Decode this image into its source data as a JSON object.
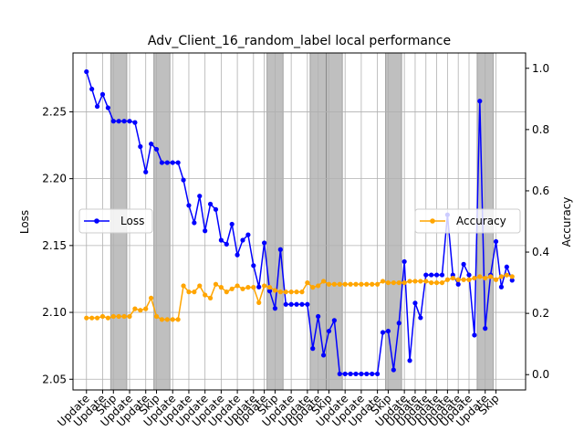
{
  "chart_data": {
    "type": "line",
    "title": "Adv_Client_16_random_label local performance",
    "xlabel": "",
    "ylabel": "Loss",
    "y2label": "Accuracy",
    "ylim": [
      2.042,
      2.294
    ],
    "y2lim": [
      -0.05,
      1.05
    ],
    "yticks": [
      2.05,
      2.1,
      2.15,
      2.2,
      2.25
    ],
    "y2ticks": [
      0.0,
      0.2,
      0.4,
      0.6,
      0.8,
      1.0
    ],
    "grid": true,
    "x": [
      0,
      1,
      2,
      3,
      4,
      5,
      6,
      7,
      8,
      9,
      10,
      11,
      12,
      13,
      14,
      15,
      16,
      17,
      18,
      19,
      20,
      21,
      22,
      23,
      24,
      25,
      26,
      27,
      28,
      29,
      30,
      31,
      32,
      33,
      34,
      35,
      36,
      37,
      38,
      39,
      40,
      41,
      42,
      43,
      44,
      45,
      46,
      47,
      48,
      49,
      50,
      51,
      52,
      53,
      54,
      55,
      56,
      57,
      58,
      59,
      60,
      61,
      62,
      63,
      64,
      65,
      66,
      67,
      68,
      69,
      70,
      71,
      72,
      73,
      74,
      75,
      76,
      77,
      78,
      79
    ],
    "tick_labels": [
      {
        "x": 0,
        "label": "Update"
      },
      {
        "x": 3,
        "label": "Update"
      },
      {
        "x": 5,
        "label": "Skip"
      },
      {
        "x": 8,
        "label": "Update"
      },
      {
        "x": 11,
        "label": "Update"
      },
      {
        "x": 13,
        "label": "Skip"
      },
      {
        "x": 16,
        "label": "Update"
      },
      {
        "x": 19,
        "label": "Update"
      },
      {
        "x": 22,
        "label": "Update"
      },
      {
        "x": 25,
        "label": "Update"
      },
      {
        "x": 28,
        "label": "Update"
      },
      {
        "x": 31,
        "label": "Update"
      },
      {
        "x": 33,
        "label": "Update"
      },
      {
        "x": 35,
        "label": "Skip"
      },
      {
        "x": 38,
        "label": "Update"
      },
      {
        "x": 41,
        "label": "Update"
      },
      {
        "x": 43,
        "label": "Update"
      },
      {
        "x": 45,
        "label": "Skip"
      },
      {
        "x": 48,
        "label": "Update"
      },
      {
        "x": 51,
        "label": "Update"
      },
      {
        "x": 54,
        "label": "Update"
      },
      {
        "x": 56,
        "label": "Skip"
      },
      {
        "x": 59,
        "label": "Update"
      },
      {
        "x": 61,
        "label": "Update"
      },
      {
        "x": 63,
        "label": "Update"
      },
      {
        "x": 65,
        "label": "Update"
      },
      {
        "x": 67,
        "label": "Update"
      },
      {
        "x": 69,
        "label": "Update"
      },
      {
        "x": 71,
        "label": "Update"
      },
      {
        "x": 74,
        "label": "Update"
      },
      {
        "x": 76,
        "label": "Skip"
      }
    ],
    "skip_spans": [
      [
        4.5,
        7.5
      ],
      [
        12.5,
        15.5
      ],
      [
        33.5,
        36.5
      ],
      [
        41.5,
        44.5
      ],
      [
        44.5,
        47.5
      ],
      [
        55.5,
        58.5
      ],
      [
        72.5,
        75.5
      ]
    ],
    "series": [
      {
        "name": "Loss",
        "axis": "left",
        "color": "#0000ff",
        "values": [
          2.28,
          2.267,
          2.254,
          2.263,
          2.253,
          2.243,
          2.243,
          2.243,
          2.243,
          2.242,
          2.224,
          2.205,
          2.226,
          2.222,
          2.212,
          2.212,
          2.212,
          2.212,
          2.199,
          2.18,
          2.167,
          2.187,
          2.161,
          2.181,
          2.177,
          2.154,
          2.151,
          2.166,
          2.143,
          2.154,
          2.158,
          2.135,
          2.119,
          2.152,
          2.116,
          2.103,
          2.147,
          2.106,
          2.106,
          2.106,
          2.106,
          2.106,
          2.073,
          2.097,
          2.068,
          2.086,
          2.094,
          2.054,
          2.054,
          2.054,
          2.054,
          2.054,
          2.054,
          2.054,
          2.054,
          2.085,
          2.086,
          2.057,
          2.092,
          2.138,
          2.064,
          2.107,
          2.096,
          2.128,
          2.128,
          2.128,
          2.128,
          2.173,
          2.128,
          2.121,
          2.136,
          2.128,
          2.083,
          2.258,
          2.088,
          2.128,
          2.153,
          2.119,
          2.134,
          2.124
        ]
      },
      {
        "name": "Accuracy",
        "axis": "right",
        "color": "#ffa500",
        "values": [
          0.185,
          0.185,
          0.185,
          0.19,
          0.185,
          0.19,
          0.19,
          0.19,
          0.19,
          0.215,
          0.21,
          0.215,
          0.25,
          0.19,
          0.18,
          0.18,
          0.18,
          0.18,
          0.29,
          0.27,
          0.27,
          0.29,
          0.26,
          0.25,
          0.295,
          0.285,
          0.27,
          0.28,
          0.29,
          0.28,
          0.285,
          0.285,
          0.235,
          0.29,
          0.285,
          0.275,
          0.27,
          0.27,
          0.27,
          0.27,
          0.27,
          0.3,
          0.285,
          0.29,
          0.305,
          0.295,
          0.295,
          0.295,
          0.295,
          0.295,
          0.295,
          0.295,
          0.295,
          0.295,
          0.295,
          0.305,
          0.3,
          0.3,
          0.3,
          0.3,
          0.305,
          0.305,
          0.305,
          0.305,
          0.3,
          0.3,
          0.3,
          0.31,
          0.315,
          0.31,
          0.31,
          0.31,
          0.315,
          0.32,
          0.315,
          0.32,
          0.31,
          0.32,
          0.325,
          0.32
        ]
      }
    ],
    "legend_loss_placement": "center-left",
    "legend_acc_placement": "center-right"
  }
}
